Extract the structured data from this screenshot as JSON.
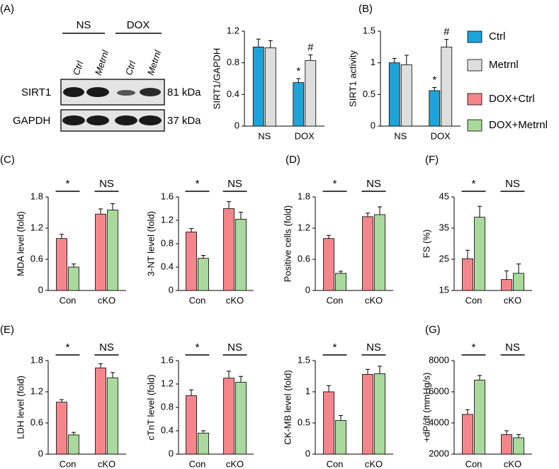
{
  "blot": {
    "groups": [
      "NS",
      "DOX"
    ],
    "lanes": [
      "Ctrl",
      "Metrnl",
      "Ctrl",
      "Metrnl"
    ],
    "bands": [
      {
        "name": "SIRT1",
        "size": "81 kDa"
      },
      {
        "name": "GAPDH",
        "size": "37 kDa"
      }
    ]
  },
  "chart_data": [
    {
      "type": "bar",
      "panel": "(A)",
      "y_label": "SIRT1/GAPDH",
      "categories": [
        "NS",
        "DOX"
      ],
      "ylim": [
        0,
        1.2
      ],
      "yticks": [
        0,
        0.4,
        0.8,
        1.2
      ],
      "series": [
        {
          "name": "Ctrl",
          "color": "#1ea3d9",
          "values": [
            1.0,
            0.55
          ],
          "errors": [
            0.1,
            0.05
          ],
          "annotations": [
            null,
            "*"
          ]
        },
        {
          "name": "Metrnl",
          "color": "#dedede",
          "values": [
            0.99,
            0.83
          ],
          "errors": [
            0.09,
            0.07
          ],
          "annotations": [
            null,
            "#"
          ]
        }
      ]
    },
    {
      "type": "bar",
      "panel": "(B)",
      "y_label": "SIRT1 activity",
      "categories": [
        "NS",
        "DOX"
      ],
      "ylim": [
        0,
        1.5
      ],
      "yticks": [
        0,
        0.5,
        1,
        1.5
      ],
      "series": [
        {
          "name": "Ctrl",
          "color": "#1ea3d9",
          "values": [
            1.0,
            0.56
          ],
          "errors": [
            0.07,
            0.05
          ],
          "annotations": [
            null,
            "*"
          ]
        },
        {
          "name": "Metrnl",
          "color": "#dedede",
          "values": [
            0.97,
            1.25
          ],
          "errors": [
            0.15,
            0.12
          ],
          "annotations": [
            null,
            "#"
          ]
        }
      ]
    },
    {
      "type": "bar",
      "panel": "(C)",
      "y_label": "MDA level (fold)",
      "categories": [
        "Con",
        "cKO"
      ],
      "category_annotations": [
        "*",
        "NS"
      ],
      "ylim": [
        0,
        1.8
      ],
      "yticks": [
        0,
        0.6,
        1.2,
        1.8
      ],
      "series": [
        {
          "name": "DOX+Ctrl",
          "color": "#f4868b",
          "values": [
            1.0,
            1.47
          ],
          "errors": [
            0.08,
            0.1
          ]
        },
        {
          "name": "DOX+Metrnl",
          "color": "#a9d99c",
          "values": [
            0.45,
            1.55
          ],
          "errors": [
            0.06,
            0.12
          ]
        }
      ]
    },
    {
      "type": "bar",
      "y_label": "3-NT level (fold)",
      "categories": [
        "Con",
        "cKO"
      ],
      "category_annotations": [
        "*",
        "NS"
      ],
      "ylim": [
        0,
        1.6
      ],
      "yticks": [
        0,
        0.4,
        0.8,
        1.2,
        1.6
      ],
      "series": [
        {
          "name": "DOX+Ctrl",
          "color": "#f4868b",
          "values": [
            1.0,
            1.4
          ],
          "errors": [
            0.06,
            0.12
          ]
        },
        {
          "name": "DOX+Metrnl",
          "color": "#a9d99c",
          "values": [
            0.55,
            1.22
          ],
          "errors": [
            0.05,
            0.12
          ]
        }
      ]
    },
    {
      "type": "bar",
      "panel": "(D)",
      "y_label": "Positive cells (fold)",
      "categories": [
        "Con",
        "cKO"
      ],
      "category_annotations": [
        "*",
        "NS"
      ],
      "ylim": [
        0,
        1.8
      ],
      "yticks": [
        0,
        0.6,
        1.2,
        1.8
      ],
      "series": [
        {
          "name": "DOX+Ctrl",
          "color": "#f4868b",
          "values": [
            1.0,
            1.42
          ],
          "errors": [
            0.06,
            0.07
          ]
        },
        {
          "name": "DOX+Metrnl",
          "color": "#a9d99c",
          "values": [
            0.33,
            1.46
          ],
          "errors": [
            0.04,
            0.15
          ]
        }
      ]
    },
    {
      "type": "bar",
      "panel": "(F)",
      "y_label": "FS (%)",
      "categories": [
        "Con",
        "cKO"
      ],
      "category_annotations": [
        "*",
        "NS"
      ],
      "ylim": [
        15,
        45
      ],
      "yticks": [
        15,
        25,
        35,
        45
      ],
      "series": [
        {
          "name": "DOX+Ctrl",
          "color": "#f4868b",
          "values": [
            25.2,
            18.5
          ],
          "errors": [
            2.7,
            2.8
          ]
        },
        {
          "name": "DOX+Metrnl",
          "color": "#a9d99c",
          "values": [
            38.5,
            20.5
          ],
          "errors": [
            3.5,
            3
          ]
        }
      ]
    },
    {
      "type": "bar",
      "panel": "(E)",
      "y_label": "LDH level (fold)",
      "categories": [
        "Con",
        "cKO"
      ],
      "category_annotations": [
        "*",
        "NS"
      ],
      "ylim": [
        0,
        1.8
      ],
      "yticks": [
        0,
        0.6,
        1.2,
        1.8
      ],
      "series": [
        {
          "name": "DOX+Ctrl",
          "color": "#f4868b",
          "values": [
            1.0,
            1.66
          ],
          "errors": [
            0.05,
            0.08
          ]
        },
        {
          "name": "DOX+Metrnl",
          "color": "#a9d99c",
          "values": [
            0.37,
            1.47
          ],
          "errors": [
            0.05,
            0.1
          ]
        }
      ]
    },
    {
      "type": "bar",
      "y_label": "cTnT level (fold)",
      "categories": [
        "Con",
        "cKO"
      ],
      "category_annotations": [
        "*",
        "NS"
      ],
      "ylim": [
        0,
        1.6
      ],
      "yticks": [
        0,
        0.4,
        0.8,
        1.2,
        1.6
      ],
      "series": [
        {
          "name": "DOX+Ctrl",
          "color": "#f4868b",
          "values": [
            1.0,
            1.3
          ],
          "errors": [
            0.1,
            0.12
          ]
        },
        {
          "name": "DOX+Metrnl",
          "color": "#a9d99c",
          "values": [
            0.36,
            1.23
          ],
          "errors": [
            0.04,
            0.1
          ]
        }
      ]
    },
    {
      "type": "bar",
      "y_label": "CK-MB level (fold)",
      "categories": [
        "Con",
        "cKO"
      ],
      "category_annotations": [
        "*",
        "NS"
      ],
      "ylim": [
        0,
        1.5
      ],
      "yticks": [
        0,
        0.5,
        1,
        1.5
      ],
      "series": [
        {
          "name": "DOX+Ctrl",
          "color": "#f4868b",
          "values": [
            1.0,
            1.28
          ],
          "errors": [
            0.1,
            0.08
          ]
        },
        {
          "name": "DOX+Metrnl",
          "color": "#a9d99c",
          "values": [
            0.54,
            1.29
          ],
          "errors": [
            0.08,
            0.12
          ]
        }
      ]
    },
    {
      "type": "bar",
      "panel": "(G)",
      "y_label": "+dP/dt (mmHg/s)",
      "categories": [
        "Con",
        "cKO"
      ],
      "category_annotations": [
        "*",
        "NS"
      ],
      "ylim": [
        2000,
        8000
      ],
      "yticks": [
        2000,
        4000,
        6000,
        8000
      ],
      "series": [
        {
          "name": "DOX+Ctrl",
          "color": "#f4868b",
          "values": [
            4550,
            3250
          ],
          "errors": [
            300,
            250
          ]
        },
        {
          "name": "DOX+Metrnl",
          "color": "#a9d99c",
          "values": [
            6750,
            3050
          ],
          "errors": [
            300,
            200
          ]
        }
      ]
    }
  ]
}
